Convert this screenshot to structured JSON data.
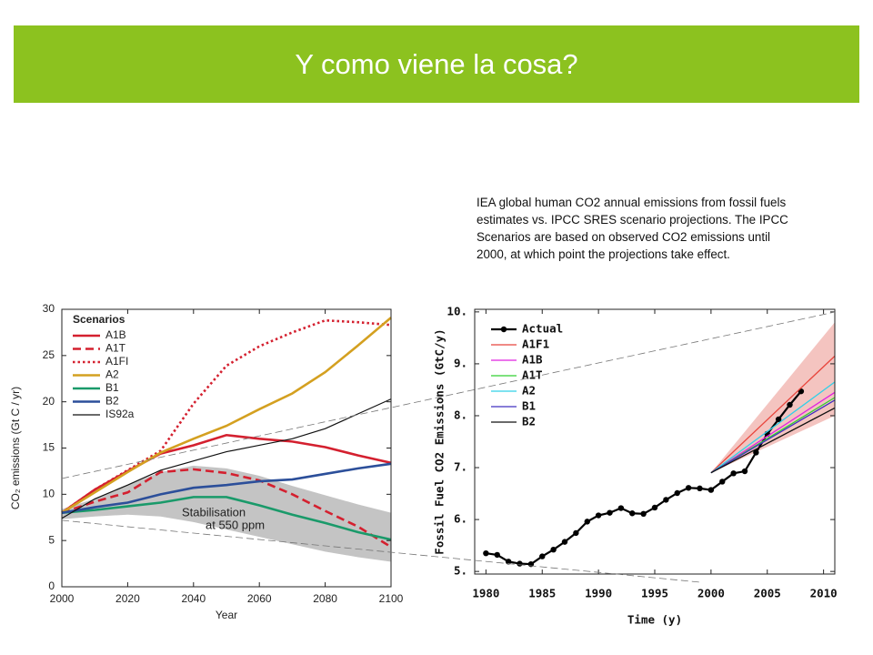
{
  "header": {
    "title": "Y como viene la cosa?"
  },
  "caption": "IEA global human CO2 annual emissions from fossil fuels estimates vs. IPCC SRES scenario projections.  The IPCC Scenarios are based on observed CO2 emissions until 2000, at which point the projections take effect.",
  "chart_data": [
    {
      "type": "line",
      "xlabel": "Year",
      "ylabel": "CO₂ emissions (Gt C / yr)",
      "legend_title": "Scenarios",
      "annotations": [
        "Stabilisation",
        "at 550 ppm"
      ],
      "xlim": [
        2000,
        2100
      ],
      "ylim": [
        0,
        30
      ],
      "xticks": [
        2000,
        2020,
        2040,
        2060,
        2080,
        2100
      ],
      "yticks": [
        0,
        5,
        10,
        15,
        20,
        25,
        30
      ],
      "grid": false,
      "x": [
        2000,
        2010,
        2020,
        2030,
        2040,
        2050,
        2060,
        2070,
        2080,
        2090,
        2100
      ],
      "band": {
        "color": "#c4c4c4",
        "low": [
          7.3,
          7.6,
          7.8,
          7.6,
          7.0,
          6.2,
          5.4,
          4.6,
          3.8,
          3.2,
          2.7
        ],
        "high": [
          8.4,
          9.5,
          11.0,
          12.4,
          13.1,
          12.8,
          12.0,
          10.9,
          9.9,
          8.9,
          8.0
        ]
      },
      "series": [
        {
          "name": "A1B",
          "color": "#d4202f",
          "style": "solid",
          "values": [
            8,
            10.5,
            12.5,
            14.4,
            15.3,
            16.4,
            16.0,
            15.7,
            15.1,
            14.2,
            13.4
          ]
        },
        {
          "name": "A1T",
          "color": "#d4202f",
          "style": "dashed",
          "values": [
            8,
            9.2,
            10.2,
            12.4,
            12.7,
            12.3,
            11.5,
            10.0,
            8.2,
            6.5,
            4.3
          ]
        },
        {
          "name": "A1FI",
          "color": "#d4202f",
          "style": "dotted",
          "values": [
            8,
            10.5,
            12.6,
            14.7,
            19.8,
            23.9,
            26.0,
            27.5,
            28.8,
            28.6,
            28.3
          ]
        },
        {
          "name": "A2",
          "color": "#d4a020",
          "style": "solid",
          "values": [
            8,
            10.2,
            12.4,
            14.5,
            16.0,
            17.4,
            19.2,
            20.9,
            23.2,
            26.1,
            29.1
          ]
        },
        {
          "name": "B1",
          "color": "#1a9a6a",
          "style": "solid",
          "values": [
            8,
            8.3,
            8.7,
            9.1,
            9.7,
            9.7,
            8.8,
            7.8,
            6.9,
            5.9,
            5.1
          ]
        },
        {
          "name": "B2",
          "color": "#2c4f9a",
          "style": "solid",
          "values": [
            8,
            8.6,
            9.1,
            10.0,
            10.7,
            11.0,
            11.4,
            11.6,
            12.2,
            12.8,
            13.3
          ]
        },
        {
          "name": "IS92a",
          "color": "#111111",
          "style": "thin",
          "values": [
            7.4,
            9.5,
            11.0,
            12.6,
            13.6,
            14.6,
            15.3,
            16.0,
            17.1,
            18.7,
            20.3
          ]
        }
      ]
    },
    {
      "type": "line",
      "xlabel": "Time (y)",
      "ylabel": "Fossil Fuel CO2 Emissions (GtC/y)",
      "xlim": [
        1979,
        2011
      ],
      "ylim": [
        4.95,
        10.05
      ],
      "xticks": [
        1980,
        1985,
        1990,
        1995,
        2000,
        2005,
        2010
      ],
      "yticks": [
        {
          "value": 5,
          "label": "5."
        },
        {
          "value": 6,
          "label": "6."
        },
        {
          "value": 7,
          "label": "7."
        },
        {
          "value": 8,
          "label": "8."
        },
        {
          "value": 9,
          "label": "9."
        },
        {
          "value": 10,
          "label": "10."
        }
      ],
      "grid": false,
      "band": {
        "color": "#f4c4c0",
        "x": [
          2000,
          2011
        ],
        "low": [
          6.9,
          8.0
        ],
        "high": [
          6.9,
          9.8
        ]
      },
      "series": [
        {
          "name": "Actual",
          "color": "#000000",
          "style": "thick",
          "marker": "circle",
          "x": [
            1980,
            1981,
            1982,
            1983,
            1984,
            1985,
            1986,
            1987,
            1988,
            1989,
            1990,
            1991,
            1992,
            1993,
            1994,
            1995,
            1996,
            1997,
            1998,
            1999,
            2000,
            2001,
            2002,
            2003,
            2004,
            2005,
            2006,
            2007,
            2008
          ],
          "values": [
            5.35,
            5.32,
            5.19,
            5.15,
            5.14,
            5.29,
            5.42,
            5.57,
            5.74,
            5.96,
            6.08,
            6.13,
            6.22,
            6.12,
            6.11,
            6.23,
            6.38,
            6.51,
            6.61,
            6.6,
            6.57,
            6.73,
            6.89,
            6.93,
            7.29,
            7.65,
            7.93,
            8.21,
            8.47
          ]
        },
        {
          "name": "A1F1",
          "color": "#e8453c",
          "style": "solid",
          "x": [
            2000,
            2011
          ],
          "values": [
            6.9,
            9.15
          ]
        },
        {
          "name": "A1B",
          "color": "#e020e0",
          "style": "solid",
          "x": [
            2000,
            2011
          ],
          "values": [
            6.9,
            8.45
          ]
        },
        {
          "name": "A1T",
          "color": "#30d030",
          "style": "solid",
          "x": [
            2000,
            2011
          ],
          "values": [
            6.9,
            8.35
          ]
        },
        {
          "name": "A2",
          "color": "#30d0e8",
          "style": "solid",
          "x": [
            2000,
            2011
          ],
          "values": [
            6.9,
            8.65
          ]
        },
        {
          "name": "B1",
          "color": "#4030c0",
          "style": "solid",
          "x": [
            2000,
            2011
          ],
          "values": [
            6.9,
            8.3
          ]
        },
        {
          "name": "B2",
          "color": "#111111",
          "style": "solid",
          "x": [
            2000,
            2011
          ],
          "values": [
            6.9,
            8.15
          ]
        }
      ]
    }
  ]
}
